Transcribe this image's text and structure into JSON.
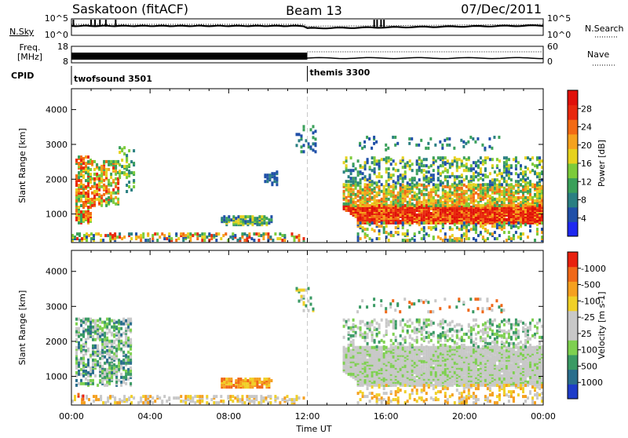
{
  "header": {
    "station": "Saskatoon (fitACF)",
    "beam": "Beam 13",
    "date": "07/Dec/2011"
  },
  "top_panels": {
    "nsky_label": "N.Sky",
    "nsky_ticks": [
      "10^5",
      "10^0"
    ],
    "nsearch_label": "N.Search",
    "nsearch_ticks": [
      "10^5",
      "10^0"
    ],
    "freq_label_1": "Freq.",
    "freq_label_2": "[MHz]",
    "freq_ticks": [
      "18",
      "8"
    ],
    "nave_label": "Nave",
    "nave_ticks": [
      "60",
      "0"
    ],
    "cpid_label": "CPID",
    "cpid_segments": [
      {
        "name": "twofsound 3501",
        "start_hour": 0
      },
      {
        "name": "themis 3300",
        "start_hour": 12
      }
    ]
  },
  "chart_data": [
    {
      "type": "heatmap",
      "ylabel": "Slant Range [km]",
      "ylim": [
        180,
        4600
      ],
      "yticks": [
        1000,
        2000,
        3000,
        4000
      ],
      "xlim": [
        0,
        24
      ],
      "colorbar": {
        "label": "Power [dB]",
        "ticks": [
          "4",
          "8",
          "12",
          "16",
          "20",
          "24",
          "28"
        ],
        "colors": [
          "#1e28f0",
          "#2050a8",
          "#2a7f82",
          "#3aa05a",
          "#7ccb3a",
          "#e6d21e",
          "#f5a21e",
          "#f26a14",
          "#e8280e",
          "#e0100a"
        ]
      }
    },
    {
      "type": "heatmap",
      "ylabel": "Slant Range [km]",
      "ylim": [
        180,
        4600
      ],
      "yticks": [
        1000,
        2000,
        3000,
        4000
      ],
      "xlim": [
        0,
        24
      ],
      "xlabel": "Time UT",
      "xticks": [
        "00:00",
        "04:00",
        "08:00",
        "12:00",
        "16:00",
        "20:00",
        "00:00"
      ],
      "colorbar": {
        "label": "Velocity [m s-1]",
        "ticks": [
          "1000",
          "500",
          "100",
          "25",
          "-25",
          "-100",
          "-500",
          "-1000"
        ],
        "colors": [
          "#1e3cc8",
          "#2a6e8c",
          "#3a9a64",
          "#7ed050",
          "#c8c8c8",
          "#c8c8c8",
          "#f0d028",
          "#f5a020",
          "#f06818",
          "#e8200e"
        ]
      }
    }
  ]
}
